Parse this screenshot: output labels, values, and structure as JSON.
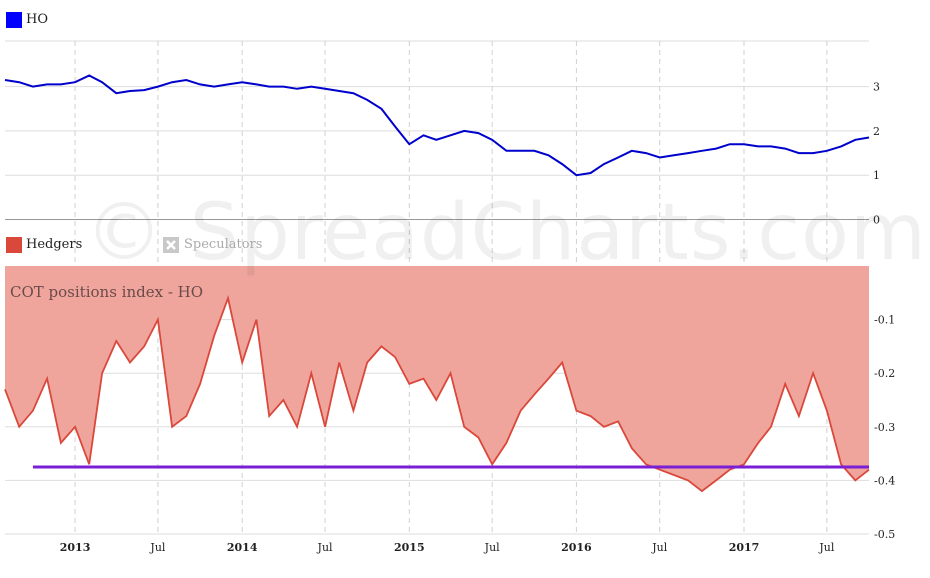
{
  "watermark": "© SpreadCharts.com",
  "colors": {
    "ho_line": "#0000cc",
    "hedgers": "#d9483b",
    "hedgers_fill": "#efa59c",
    "speculators_icon": "#c8c8c8",
    "threshold": "#7a1fd6",
    "grid": "#dddddd"
  },
  "legend_top": {
    "series": "HO",
    "swatch_color": "#0000ff"
  },
  "legend_bottom": {
    "hedgers": "Hedgers",
    "speculators": "Speculators",
    "speculators_icon": "close-box-icon"
  },
  "chart_data": [
    {
      "type": "line",
      "panel": "top",
      "series": [
        {
          "name": "HO",
          "color": "#0000cc"
        }
      ],
      "y_ticks": [
        "0",
        "1",
        "2",
        "3"
      ],
      "ylim": [
        0,
        4.4
      ],
      "x_range": [
        "2012-08",
        "2017-10"
      ],
      "points": [
        [
          "2012-08-01",
          3.15
        ],
        [
          "2012-09-01",
          3.1
        ],
        [
          "2012-10-01",
          3.0
        ],
        [
          "2012-11-01",
          3.05
        ],
        [
          "2012-12-01",
          3.05
        ],
        [
          "2013-01-01",
          3.1
        ],
        [
          "2013-02-01",
          3.25
        ],
        [
          "2013-03-01",
          3.1
        ],
        [
          "2013-04-01",
          2.85
        ],
        [
          "2013-05-01",
          2.9
        ],
        [
          "2013-06-01",
          2.92
        ],
        [
          "2013-07-01",
          3.0
        ],
        [
          "2013-08-01",
          3.1
        ],
        [
          "2013-09-01",
          3.15
        ],
        [
          "2013-10-01",
          3.05
        ],
        [
          "2013-11-01",
          3.0
        ],
        [
          "2013-12-01",
          3.05
        ],
        [
          "2014-01-01",
          3.1
        ],
        [
          "2014-02-01",
          3.05
        ],
        [
          "2014-03-01",
          3.0
        ],
        [
          "2014-04-01",
          3.0
        ],
        [
          "2014-05-01",
          2.95
        ],
        [
          "2014-06-01",
          3.0
        ],
        [
          "2014-07-01",
          2.95
        ],
        [
          "2014-08-01",
          2.9
        ],
        [
          "2014-09-01",
          2.85
        ],
        [
          "2014-10-01",
          2.7
        ],
        [
          "2014-11-01",
          2.5
        ],
        [
          "2014-12-01",
          2.1
        ],
        [
          "2015-01-01",
          1.7
        ],
        [
          "2015-02-01",
          1.9
        ],
        [
          "2015-03-01",
          1.8
        ],
        [
          "2015-04-01",
          1.9
        ],
        [
          "2015-05-01",
          2.0
        ],
        [
          "2015-06-01",
          1.95
        ],
        [
          "2015-07-01",
          1.8
        ],
        [
          "2015-08-01",
          1.55
        ],
        [
          "2015-09-01",
          1.55
        ],
        [
          "2015-10-01",
          1.55
        ],
        [
          "2015-11-01",
          1.45
        ],
        [
          "2015-12-01",
          1.25
        ],
        [
          "2016-01-01",
          1.0
        ],
        [
          "2016-02-01",
          1.05
        ],
        [
          "2016-03-01",
          1.25
        ],
        [
          "2016-04-01",
          1.4
        ],
        [
          "2016-05-01",
          1.55
        ],
        [
          "2016-06-01",
          1.5
        ],
        [
          "2016-07-01",
          1.4
        ],
        [
          "2016-08-01",
          1.45
        ],
        [
          "2016-09-01",
          1.5
        ],
        [
          "2016-10-01",
          1.55
        ],
        [
          "2016-11-01",
          1.6
        ],
        [
          "2016-12-01",
          1.7
        ],
        [
          "2017-01-01",
          1.7
        ],
        [
          "2017-02-01",
          1.65
        ],
        [
          "2017-03-01",
          1.65
        ],
        [
          "2017-04-01",
          1.6
        ],
        [
          "2017-05-01",
          1.5
        ],
        [
          "2017-06-01",
          1.5
        ],
        [
          "2017-07-01",
          1.55
        ],
        [
          "2017-08-01",
          1.65
        ],
        [
          "2017-09-01",
          1.8
        ],
        [
          "2017-10-01",
          1.85
        ]
      ]
    },
    {
      "type": "area",
      "panel": "bottom",
      "title": "COT positions index - HO",
      "series": [
        {
          "name": "Hedgers",
          "color": "#d9483b"
        }
      ],
      "y_ticks": [
        "-0.1",
        "-0.2",
        "-0.3",
        "-0.4",
        "-0.5"
      ],
      "ylim": [
        -0.5,
        0.0
      ],
      "x_range": [
        "2012-08",
        "2017-10"
      ],
      "x_ticks": [
        {
          "label": "2013",
          "date": "2013-01-01",
          "year": true
        },
        {
          "label": "Jul",
          "date": "2013-07-01",
          "year": false
        },
        {
          "label": "2014",
          "date": "2014-01-01",
          "year": true
        },
        {
          "label": "Jul",
          "date": "2014-07-01",
          "year": false
        },
        {
          "label": "2015",
          "date": "2015-01-01",
          "year": true
        },
        {
          "label": "Jul",
          "date": "2015-07-01",
          "year": false
        },
        {
          "label": "2016",
          "date": "2016-01-01",
          "year": true
        },
        {
          "label": "Jul",
          "date": "2016-07-01",
          "year": false
        },
        {
          "label": "2017",
          "date": "2017-01-01",
          "year": true
        },
        {
          "label": "Jul",
          "date": "2017-07-01",
          "year": false
        }
      ],
      "threshold": {
        "value": -0.375,
        "from": "2012-10-01",
        "to": "2017-10-01",
        "color": "#7a1fd6"
      },
      "points": [
        [
          "2012-08-01",
          -0.23
        ],
        [
          "2012-09-01",
          -0.3
        ],
        [
          "2012-10-01",
          -0.27
        ],
        [
          "2012-11-01",
          -0.21
        ],
        [
          "2012-12-01",
          -0.33
        ],
        [
          "2013-01-01",
          -0.3
        ],
        [
          "2013-02-01",
          -0.37
        ],
        [
          "2013-03-01",
          -0.2
        ],
        [
          "2013-04-01",
          -0.14
        ],
        [
          "2013-05-01",
          -0.18
        ],
        [
          "2013-06-01",
          -0.15
        ],
        [
          "2013-07-01",
          -0.1
        ],
        [
          "2013-08-01",
          -0.3
        ],
        [
          "2013-09-01",
          -0.28
        ],
        [
          "2013-10-01",
          -0.22
        ],
        [
          "2013-11-01",
          -0.13
        ],
        [
          "2013-12-01",
          -0.06
        ],
        [
          "2014-01-01",
          -0.18
        ],
        [
          "2014-02-01",
          -0.1
        ],
        [
          "2014-03-01",
          -0.28
        ],
        [
          "2014-04-01",
          -0.25
        ],
        [
          "2014-05-01",
          -0.3
        ],
        [
          "2014-06-01",
          -0.2
        ],
        [
          "2014-07-01",
          -0.3
        ],
        [
          "2014-08-01",
          -0.18
        ],
        [
          "2014-09-01",
          -0.27
        ],
        [
          "2014-10-01",
          -0.18
        ],
        [
          "2014-11-01",
          -0.15
        ],
        [
          "2014-12-01",
          -0.17
        ],
        [
          "2015-01-01",
          -0.22
        ],
        [
          "2015-02-01",
          -0.21
        ],
        [
          "2015-03-01",
          -0.25
        ],
        [
          "2015-04-01",
          -0.2
        ],
        [
          "2015-05-01",
          -0.3
        ],
        [
          "2015-06-01",
          -0.32
        ],
        [
          "2015-07-01",
          -0.37
        ],
        [
          "2015-08-01",
          -0.33
        ],
        [
          "2015-09-01",
          -0.27
        ],
        [
          "2015-10-01",
          -0.24
        ],
        [
          "2015-11-01",
          -0.21
        ],
        [
          "2015-12-01",
          -0.18
        ],
        [
          "2016-01-01",
          -0.27
        ],
        [
          "2016-02-01",
          -0.28
        ],
        [
          "2016-03-01",
          -0.3
        ],
        [
          "2016-04-01",
          -0.29
        ],
        [
          "2016-05-01",
          -0.34
        ],
        [
          "2016-06-01",
          -0.37
        ],
        [
          "2016-07-01",
          -0.38
        ],
        [
          "2016-08-01",
          -0.39
        ],
        [
          "2016-09-01",
          -0.4
        ],
        [
          "2016-10-01",
          -0.42
        ],
        [
          "2016-11-01",
          -0.4
        ],
        [
          "2016-12-01",
          -0.38
        ],
        [
          "2017-01-01",
          -0.37
        ],
        [
          "2017-02-01",
          -0.33
        ],
        [
          "2017-03-01",
          -0.3
        ],
        [
          "2017-04-01",
          -0.22
        ],
        [
          "2017-05-01",
          -0.28
        ],
        [
          "2017-06-01",
          -0.2
        ],
        [
          "2017-07-01",
          -0.27
        ],
        [
          "2017-08-01",
          -0.37
        ],
        [
          "2017-09-01",
          -0.4
        ],
        [
          "2017-10-01",
          -0.38
        ]
      ]
    }
  ]
}
